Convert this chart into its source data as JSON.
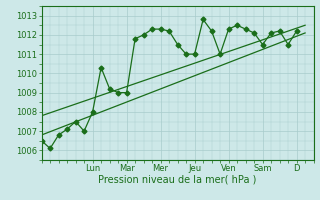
{
  "xlabel": "Pression niveau de la mer( hPa )",
  "ylim": [
    1005.5,
    1013.5
  ],
  "xlim": [
    0,
    16.0
  ],
  "yticks": [
    1006,
    1007,
    1008,
    1009,
    1010,
    1011,
    1012,
    1013
  ],
  "bg_color": "#cde8e8",
  "grid_color": "#a8cccc",
  "line_color": "#1a6e1a",
  "day_labels": [
    "Lun",
    "Mar",
    "Mer",
    "Jeu",
    "Ven",
    "Sam",
    "D"
  ],
  "day_positions": [
    3.0,
    5.0,
    7.0,
    9.0,
    11.0,
    13.0,
    15.0
  ],
  "s1x": [
    0.0,
    0.5,
    1.0,
    1.5,
    2.0,
    2.5,
    3.0,
    3.5,
    4.0,
    4.5,
    5.0,
    5.5,
    6.0,
    6.5,
    7.0,
    7.5,
    8.0,
    8.5,
    9.0,
    9.5,
    10.0,
    10.5,
    11.0,
    11.5,
    12.0,
    12.5,
    13.0,
    13.5,
    14.0,
    14.5,
    15.0
  ],
  "s1y": [
    1006.5,
    1006.1,
    1006.8,
    1007.1,
    1007.5,
    1007.0,
    1008.0,
    1010.3,
    1009.2,
    1009.0,
    1009.0,
    1011.8,
    1012.0,
    1012.3,
    1012.3,
    1012.2,
    1011.5,
    1011.0,
    1011.0,
    1012.8,
    1012.2,
    1011.0,
    1012.3,
    1012.5,
    1012.3,
    1012.1,
    1011.5,
    1012.1,
    1012.2,
    1011.5,
    1012.2
  ],
  "trend1_x": [
    0.0,
    15.5
  ],
  "trend1_y": [
    1006.8,
    1012.1
  ],
  "trend2_x": [
    0.0,
    15.5
  ],
  "trend2_y": [
    1007.8,
    1012.5
  ],
  "line_width": 0.9,
  "marker_size": 2.5,
  "font_size_ticks": 6,
  "font_size_xlabel": 7
}
